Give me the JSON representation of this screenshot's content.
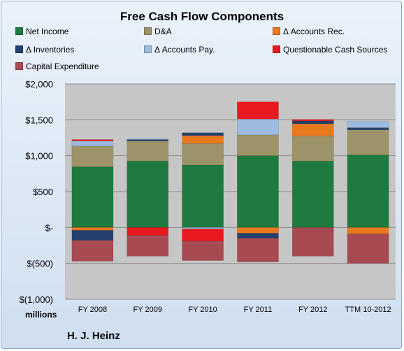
{
  "chart_data": {
    "type": "bar",
    "stacked": true,
    "title": "Free Cash Flow Components",
    "units_label": "millions",
    "footer_label": "H. J. Heinz",
    "categories": [
      "FY 2008",
      "FY 2009",
      "FY 2010",
      "FY 2011",
      "FY 2012",
      "TTM 10-2012"
    ],
    "ylim": [
      -1000,
      2000
    ],
    "yticks": [
      {
        "value": 2000,
        "label": "$2,000"
      },
      {
        "value": 1500,
        "label": "$1,500"
      },
      {
        "value": 1000,
        "label": "$1,000"
      },
      {
        "value": 500,
        "label": "$500"
      },
      {
        "value": 0,
        "label": "$-"
      },
      {
        "value": -500,
        "label": "$(500)"
      },
      {
        "value": -1000,
        "label": "$(1,000)"
      }
    ],
    "grid": true,
    "legend_position": "top",
    "series": [
      {
        "name": "Net Income",
        "color": "#1e7a3e",
        "values": [
          845,
          925,
          870,
          1000,
          925,
          1010
        ]
      },
      {
        "name": "D&A",
        "color": "#9c9468",
        "values": [
          290,
          280,
          300,
          290,
          350,
          350
        ]
      },
      {
        "name": "Δ Accounts Rec.",
        "color": "#e8791f",
        "values": [
          -40,
          0,
          110,
          -80,
          170,
          -90
        ]
      },
      {
        "name": "Δ Inventories",
        "color": "#24406e",
        "values": [
          -140,
          20,
          40,
          -70,
          40,
          30
        ]
      },
      {
        "name": "Δ Accounts Pay.",
        "color": "#9dbbe0",
        "values": [
          70,
          10,
          -20,
          220,
          0,
          90
        ]
      },
      {
        "name": "Questionable Cash Sources",
        "color": "#e8191f",
        "values": [
          20,
          -110,
          -170,
          240,
          20,
          0
        ]
      },
      {
        "name": "Capital Expenditure",
        "color": "#a84a52",
        "values": [
          -290,
          -290,
          -270,
          -330,
          -400,
          -410
        ]
      }
    ],
    "plot_background": "#c6c6c6"
  }
}
